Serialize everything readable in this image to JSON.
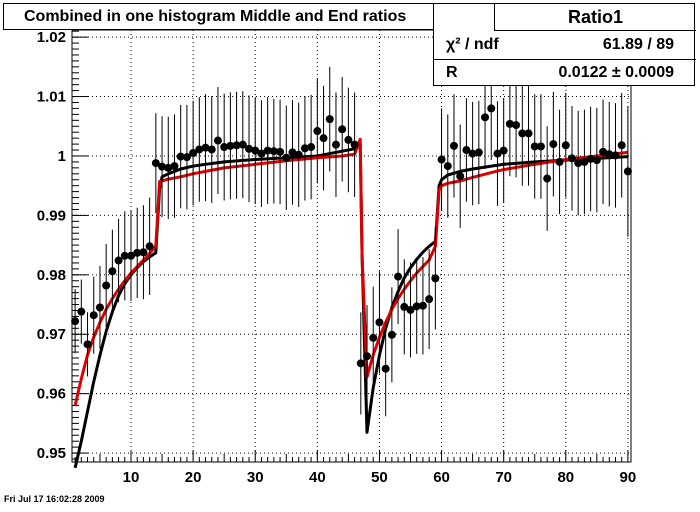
{
  "title": "Combined in one histogram Middle and End ratios",
  "stats": {
    "name": "Ratio1",
    "rows": [
      {
        "key": "χ² / ndf",
        "value": "61.89 / 89"
      },
      {
        "key": "R",
        "value": "0.0122 ± 0.0009"
      }
    ]
  },
  "footer": "Fri Jul 17 16:02:28 2009",
  "chart_data": {
    "type": "scatter",
    "title": "Combined in one histogram Middle and End ratios",
    "xlim": [
      0.5,
      90.5
    ],
    "ylim": [
      0.9485,
      1.0212
    ],
    "xticks": [
      10,
      20,
      30,
      40,
      50,
      60,
      70,
      80,
      90
    ],
    "yticks": [
      0.95,
      0.96,
      0.97,
      0.98,
      0.99,
      1,
      1.01,
      1.02
    ],
    "ytick_labels": [
      "0.95",
      "0.96",
      "0.97",
      "0.98",
      "0.99",
      "1",
      "1.01",
      "1.02"
    ],
    "grid": true,
    "points": {
      "x": [
        1,
        2,
        3,
        4,
        5,
        6,
        7,
        8,
        9,
        10,
        11,
        12,
        13,
        14,
        15,
        16,
        17,
        18,
        19,
        20,
        21,
        22,
        23,
        24,
        25,
        26,
        27,
        28,
        29,
        30,
        31,
        32,
        33,
        34,
        35,
        36,
        37,
        38,
        39,
        40,
        41,
        42,
        43,
        44,
        45,
        46,
        47,
        48,
        49,
        50,
        51,
        52,
        53,
        54,
        55,
        56,
        57,
        58,
        59,
        60,
        61,
        62,
        63,
        64,
        65,
        66,
        67,
        68,
        69,
        70,
        71,
        72,
        73,
        74,
        75,
        76,
        77,
        78,
        79,
        80,
        81,
        82,
        83,
        84,
        85,
        86,
        87,
        88,
        89,
        90
      ],
      "y": [
        0.9722,
        0.9738,
        0.9683,
        0.9732,
        0.9745,
        0.9782,
        0.9806,
        0.9824,
        0.9832,
        0.9832,
        0.9837,
        0.9838,
        0.9848,
        0.9988,
        0.9982,
        0.998,
        0.9983,
        0.9999,
        0.9998,
        1.0005,
        1.0011,
        1.0014,
        1.0011,
        1.0026,
        1.0015,
        1.0017,
        1.0018,
        1.0019,
        1.0012,
        1.0009,
        1.0004,
        1.0009,
        1.0008,
        1.0007,
        0.9997,
        1.0006,
        1.0002,
        1.0013,
        1.0015,
        1.0042,
        1.003,
        1.0062,
        1.0019,
        1.0045,
        1.0027,
        1.0019,
        0.9651,
        0.9663,
        0.9694,
        0.972,
        0.9642,
        0.9699,
        0.9797,
        0.9746,
        0.9741,
        0.9747,
        0.9748,
        0.9759,
        0.9794,
        0.9994,
        0.9983,
        1.0017,
        0.9966,
        1.001,
        1.0004,
        1.0006,
        1.0065,
        1.008,
        1.0004,
        1.0009,
        1.0054,
        1.0052,
        1.0038,
        1.0038,
        1.0016,
        1.0016,
        0.9962,
        1.002,
        0.999,
        1.0018,
        0.9996,
        0.9988,
        0.999,
        0.9995,
        0.9993,
        1.0007,
        1.0003,
        1.0001,
        1.0018,
        0.9974
      ],
      "err": [
        0.0054,
        0.0054,
        0.0054,
        0.0065,
        0.007,
        0.007,
        0.007,
        0.007,
        0.0075,
        0.0076,
        0.0076,
        0.0079,
        0.0082,
        0.0084,
        0.0085,
        0.0086,
        0.0087,
        0.0087,
        0.0088,
        0.0088,
        0.0088,
        0.009,
        0.009,
        0.009,
        0.009,
        0.009,
        0.009,
        0.009,
        0.009,
        0.009,
        0.009,
        0.009,
        0.0088,
        0.0088,
        0.0088,
        0.0088,
        0.0088,
        0.0088,
        0.0088,
        0.0088,
        0.0088,
        0.0088,
        0.0088,
        0.0088,
        0.0088,
        0.0088,
        0.0086,
        0.0086,
        0.0086,
        0.0086,
        0.008,
        0.008,
        0.008,
        0.008,
        0.008,
        0.008,
        0.0082,
        0.0084,
        0.0086,
        0.0086,
        0.0087,
        0.0087,
        0.0087,
        0.0087,
        0.0087,
        0.0087,
        0.0087,
        0.0087,
        0.0088,
        0.0088,
        0.0088,
        0.0088,
        0.0088,
        0.0088,
        0.0088,
        0.0088,
        0.0088,
        0.0088,
        0.0088,
        0.0088,
        0.0088,
        0.0088,
        0.0088,
        0.0088,
        0.0088,
        0.0088,
        0.0088,
        0.0088,
        0.0088,
        0.011
      ]
    },
    "series": [
      {
        "color": "#000000",
        "x": [
          1,
          2,
          3,
          4,
          5,
          6,
          7,
          8,
          9,
          10,
          11,
          12,
          13,
          14,
          14.6,
          15,
          16,
          18,
          20,
          22,
          25,
          30,
          35,
          40,
          44,
          46,
          46.9,
          47.2,
          48,
          49,
          50,
          51,
          52,
          53,
          54,
          55,
          56,
          57,
          58,
          59,
          59.6,
          60,
          61,
          63,
          65,
          68,
          70,
          75,
          80,
          85,
          90
        ],
        "y": [
          0.9475,
          0.952,
          0.957,
          0.962,
          0.9665,
          0.9705,
          0.9738,
          0.9765,
          0.9785,
          0.98,
          0.9812,
          0.9822,
          0.983,
          0.9837,
          0.9945,
          0.9965,
          0.997,
          0.9978,
          0.9983,
          0.9986,
          0.999,
          0.9994,
          0.9997,
          1.0,
          1.0008,
          1.0012,
          1.0022,
          0.983,
          0.9535,
          0.961,
          0.9665,
          0.971,
          0.9745,
          0.9772,
          0.9795,
          0.9812,
          0.9826,
          0.9838,
          0.9848,
          0.9856,
          0.995,
          0.996,
          0.9968,
          0.9974,
          0.9978,
          0.9983,
          0.9986,
          0.999,
          0.9993,
          0.9996,
          0.9999
        ]
      },
      {
        "color": "#dd0000",
        "x": [
          1,
          2,
          3,
          4,
          5,
          6,
          7,
          8,
          9,
          10,
          11,
          12,
          13,
          14,
          14.6,
          15,
          16,
          18,
          20,
          22,
          25,
          30,
          35,
          40,
          44,
          46,
          46.9,
          47.2,
          48,
          49,
          50,
          51,
          52,
          53,
          54,
          55,
          56,
          57,
          58,
          59,
          59.6,
          60,
          61,
          63,
          65,
          68,
          70,
          75,
          80,
          85,
          90
        ],
        "y": [
          0.958,
          0.9625,
          0.9665,
          0.9695,
          0.972,
          0.9742,
          0.976,
          0.9776,
          0.979,
          0.9803,
          0.9814,
          0.9825,
          0.9836,
          0.9848,
          0.9957,
          0.9958,
          0.9961,
          0.9965,
          0.997,
          0.9974,
          0.998,
          0.9986,
          0.9992,
          0.9997,
          1.0,
          1.0003,
          1.0028,
          0.983,
          0.9628,
          0.9665,
          0.9695,
          0.972,
          0.9742,
          0.976,
          0.9776,
          0.979,
          0.9803,
          0.9814,
          0.9825,
          0.9848,
          0.9942,
          0.995,
          0.9954,
          0.9958,
          0.9964,
          0.9972,
          0.9977,
          0.9986,
          0.9994,
          1.0,
          1.0006
        ]
      }
    ]
  }
}
